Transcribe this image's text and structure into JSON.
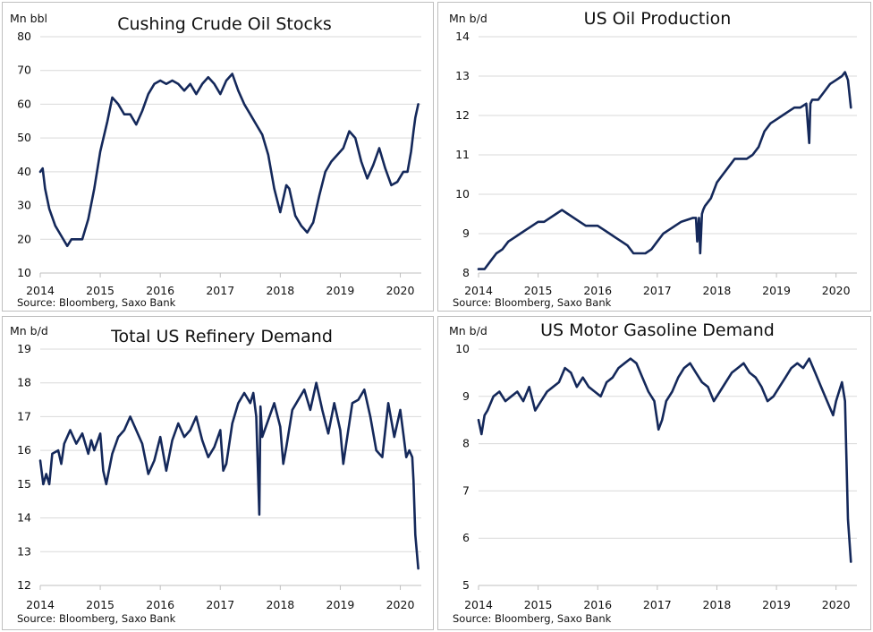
{
  "source_label": "Source: Bloomberg, Saxo Bank",
  "chart_data": [
    {
      "type": "line",
      "title": "Cushing Crude Oil Stocks",
      "ylabel": "Mn bbl",
      "xlim": [
        2014,
        2020.35
      ],
      "ylim": [
        10,
        80
      ],
      "yticks": [
        10,
        20,
        30,
        40,
        50,
        60,
        70,
        80
      ],
      "xticks": [
        2014,
        2015,
        2016,
        2017,
        2018,
        2019,
        2020
      ],
      "color": "#14285a",
      "x": [
        2014.0,
        2014.04,
        2014.08,
        2014.15,
        2014.25,
        2014.35,
        2014.45,
        2014.52,
        2014.6,
        2014.7,
        2014.8,
        2014.9,
        2015.0,
        2015.12,
        2015.2,
        2015.3,
        2015.4,
        2015.5,
        2015.6,
        2015.7,
        2015.8,
        2015.9,
        2016.0,
        2016.1,
        2016.2,
        2016.3,
        2016.4,
        2016.5,
        2016.6,
        2016.7,
        2016.8,
        2016.9,
        2017.0,
        2017.1,
        2017.2,
        2017.3,
        2017.4,
        2017.5,
        2017.6,
        2017.7,
        2017.8,
        2017.9,
        2018.0,
        2018.05,
        2018.1,
        2018.15,
        2018.25,
        2018.35,
        2018.45,
        2018.55,
        2018.65,
        2018.75,
        2018.85,
        2018.95,
        2019.05,
        2019.15,
        2019.25,
        2019.35,
        2019.45,
        2019.55,
        2019.65,
        2019.75,
        2019.85,
        2019.95,
        2020.05,
        2020.12,
        2020.18,
        2020.22,
        2020.25,
        2020.3
      ],
      "y": [
        40,
        41,
        35,
        29,
        24,
        21,
        18,
        20,
        20,
        20,
        26,
        35,
        46,
        55,
        62,
        60,
        57,
        57,
        54,
        58,
        63,
        66,
        67,
        66,
        67,
        66,
        64,
        66,
        63,
        66,
        68,
        66,
        63,
        67,
        69,
        64,
        60,
        57,
        54,
        51,
        45,
        35,
        28,
        32,
        36,
        35,
        27,
        24,
        22,
        25,
        33,
        40,
        43,
        45,
        47,
        52,
        50,
        43,
        38,
        42,
        47,
        41,
        36,
        37,
        40,
        40,
        46,
        52,
        56,
        60
      ]
    },
    {
      "type": "line",
      "title": "US Oil Production",
      "ylabel": "Mn b/d",
      "xlim": [
        2014,
        2020.35
      ],
      "ylim": [
        8,
        14
      ],
      "yticks": [
        8,
        9,
        10,
        11,
        12,
        13,
        14
      ],
      "xticks": [
        2014,
        2015,
        2016,
        2017,
        2018,
        2019,
        2020
      ],
      "color": "#14285a",
      "x": [
        2014.0,
        2014.1,
        2014.2,
        2014.3,
        2014.4,
        2014.5,
        2014.6,
        2014.7,
        2014.8,
        2014.9,
        2015.0,
        2015.1,
        2015.2,
        2015.3,
        2015.4,
        2015.5,
        2015.6,
        2015.7,
        2015.8,
        2015.9,
        2016.0,
        2016.1,
        2016.2,
        2016.3,
        2016.4,
        2016.5,
        2016.6,
        2016.7,
        2016.8,
        2016.9,
        2017.0,
        2017.1,
        2017.2,
        2017.3,
        2017.4,
        2017.5,
        2017.6,
        2017.65,
        2017.67,
        2017.7,
        2017.72,
        2017.75,
        2017.77,
        2017.8,
        2017.9,
        2018.0,
        2018.1,
        2018.2,
        2018.3,
        2018.4,
        2018.5,
        2018.6,
        2018.7,
        2018.8,
        2018.9,
        2019.0,
        2019.1,
        2019.2,
        2019.3,
        2019.4,
        2019.5,
        2019.55,
        2019.57,
        2019.6,
        2019.7,
        2019.8,
        2019.9,
        2020.0,
        2020.1,
        2020.15,
        2020.2,
        2020.25
      ],
      "y": [
        8.1,
        8.1,
        8.3,
        8.5,
        8.6,
        8.8,
        8.9,
        9.0,
        9.1,
        9.2,
        9.3,
        9.3,
        9.4,
        9.5,
        9.6,
        9.5,
        9.4,
        9.3,
        9.2,
        9.2,
        9.2,
        9.1,
        9.0,
        8.9,
        8.8,
        8.7,
        8.5,
        8.5,
        8.5,
        8.6,
        8.8,
        9.0,
        9.1,
        9.2,
        9.3,
        9.35,
        9.4,
        9.4,
        8.8,
        9.4,
        8.5,
        9.5,
        9.6,
        9.7,
        9.9,
        10.3,
        10.5,
        10.7,
        10.9,
        10.9,
        10.9,
        11.0,
        11.2,
        11.6,
        11.8,
        11.9,
        12.0,
        12.1,
        12.2,
        12.2,
        12.3,
        11.3,
        12.3,
        12.4,
        12.4,
        12.6,
        12.8,
        12.9,
        13.0,
        13.1,
        12.9,
        12.2
      ]
    },
    {
      "type": "line",
      "title": "Total US Refinery Demand",
      "ylabel": "Mn b/d",
      "xlim": [
        2014,
        2020.35
      ],
      "ylim": [
        12,
        19
      ],
      "yticks": [
        12,
        13,
        14,
        15,
        16,
        17,
        18,
        19
      ],
      "xticks": [
        2014,
        2015,
        2016,
        2017,
        2018,
        2019,
        2020
      ],
      "color": "#14285a",
      "x": [
        2014.0,
        2014.05,
        2014.1,
        2014.15,
        2014.2,
        2014.3,
        2014.35,
        2014.4,
        2014.5,
        2014.6,
        2014.7,
        2014.8,
        2014.85,
        2014.9,
        2015.0,
        2015.05,
        2015.1,
        2015.2,
        2015.3,
        2015.4,
        2015.5,
        2015.6,
        2015.7,
        2015.8,
        2015.9,
        2016.0,
        2016.1,
        2016.2,
        2016.3,
        2016.4,
        2016.5,
        2016.6,
        2016.7,
        2016.8,
        2016.9,
        2017.0,
        2017.05,
        2017.1,
        2017.2,
        2017.3,
        2017.4,
        2017.5,
        2017.55,
        2017.6,
        2017.65,
        2017.67,
        2017.7,
        2017.8,
        2017.9,
        2018.0,
        2018.05,
        2018.1,
        2018.2,
        2018.3,
        2018.4,
        2018.5,
        2018.6,
        2018.7,
        2018.8,
        2018.9,
        2019.0,
        2019.05,
        2019.1,
        2019.2,
        2019.3,
        2019.4,
        2019.5,
        2019.6,
        2019.7,
        2019.8,
        2019.9,
        2020.0,
        2020.05,
        2020.1,
        2020.15,
        2020.2,
        2020.22,
        2020.25,
        2020.3
      ],
      "y": [
        15.7,
        15.0,
        15.3,
        15.0,
        15.9,
        16.0,
        15.6,
        16.2,
        16.6,
        16.2,
        16.5,
        15.9,
        16.3,
        16.0,
        16.5,
        15.4,
        15.0,
        15.9,
        16.4,
        16.6,
        17.0,
        16.6,
        16.2,
        15.3,
        15.7,
        16.4,
        15.4,
        16.3,
        16.8,
        16.4,
        16.6,
        17.0,
        16.3,
        15.8,
        16.1,
        16.6,
        15.4,
        15.6,
        16.8,
        17.4,
        17.7,
        17.4,
        17.7,
        17.0,
        14.1,
        17.3,
        16.4,
        16.9,
        17.4,
        16.7,
        15.6,
        16.1,
        17.2,
        17.5,
        17.8,
        17.2,
        18.0,
        17.2,
        16.5,
        17.4,
        16.6,
        15.6,
        16.2,
        17.4,
        17.5,
        17.8,
        17.0,
        16.0,
        15.8,
        17.4,
        16.4,
        17.2,
        16.5,
        15.8,
        16.0,
        15.8,
        15.1,
        13.5,
        12.5
      ]
    },
    {
      "type": "line",
      "title": "US Motor Gasoline Demand",
      "ylabel": "Mn b/d",
      "xlim": [
        2014,
        2020.35
      ],
      "ylim": [
        5,
        10
      ],
      "yticks": [
        5,
        6,
        7,
        8,
        9,
        10
      ],
      "xticks": [
        2014,
        2015,
        2016,
        2017,
        2018,
        2019,
        2020
      ],
      "color": "#14285a",
      "x": [
        2014.0,
        2014.05,
        2014.1,
        2014.15,
        2014.25,
        2014.35,
        2014.45,
        2014.55,
        2014.65,
        2014.75,
        2014.85,
        2014.95,
        2015.05,
        2015.15,
        2015.25,
        2015.35,
        2015.45,
        2015.55,
        2015.65,
        2015.75,
        2015.85,
        2015.95,
        2016.05,
        2016.15,
        2016.25,
        2016.35,
        2016.45,
        2016.55,
        2016.65,
        2016.75,
        2016.85,
        2016.95,
        2017.02,
        2017.08,
        2017.15,
        2017.25,
        2017.35,
        2017.45,
        2017.55,
        2017.65,
        2017.75,
        2017.85,
        2017.95,
        2018.05,
        2018.15,
        2018.25,
        2018.35,
        2018.45,
        2018.55,
        2018.65,
        2018.75,
        2018.85,
        2018.95,
        2019.05,
        2019.15,
        2019.25,
        2019.35,
        2019.45,
        2019.55,
        2019.65,
        2019.75,
        2019.85,
        2019.95,
        2020.0,
        2020.05,
        2020.1,
        2020.15,
        2020.2,
        2020.25
      ],
      "y": [
        8.5,
        8.2,
        8.6,
        8.7,
        9.0,
        9.1,
        8.9,
        9.0,
        9.1,
        8.9,
        9.2,
        8.7,
        8.9,
        9.1,
        9.2,
        9.3,
        9.6,
        9.5,
        9.2,
        9.4,
        9.2,
        9.1,
        9.0,
        9.3,
        9.4,
        9.6,
        9.7,
        9.8,
        9.7,
        9.4,
        9.1,
        8.9,
        8.3,
        8.5,
        8.9,
        9.1,
        9.4,
        9.6,
        9.7,
        9.5,
        9.3,
        9.2,
        8.9,
        9.1,
        9.3,
        9.5,
        9.6,
        9.7,
        9.5,
        9.4,
        9.2,
        8.9,
        9.0,
        9.2,
        9.4,
        9.6,
        9.7,
        9.6,
        9.8,
        9.5,
        9.2,
        8.9,
        8.6,
        8.9,
        9.1,
        9.3,
        8.9,
        6.4,
        5.5
      ]
    }
  ]
}
